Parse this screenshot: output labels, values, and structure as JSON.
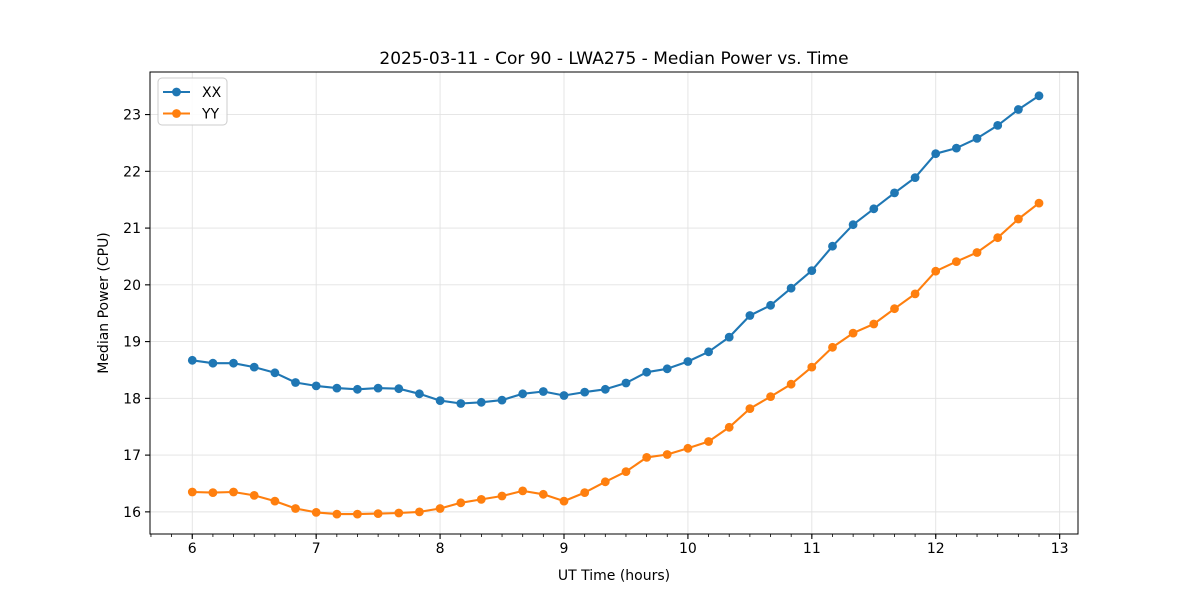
{
  "chart_data": {
    "type": "line",
    "title": "2025-03-11 - Cor 90 - LWA275 - Median Power vs. Time",
    "xlabel": "UT Time (hours)",
    "ylabel": "Median Power (CPU)",
    "xlim": [
      5.659,
      13.148
    ],
    "ylim": [
      15.61,
      23.75
    ],
    "xticks": [
      6,
      7,
      8,
      9,
      10,
      11,
      12,
      13
    ],
    "yticks": [
      16,
      17,
      18,
      19,
      20,
      21,
      22,
      23
    ],
    "x_minor_step": 0.166667,
    "grid": true,
    "grid_color": "#e2e2e2",
    "legend_position": "upper-left",
    "x": [
      6.0,
      6.167,
      6.333,
      6.5,
      6.667,
      6.833,
      7.0,
      7.167,
      7.333,
      7.5,
      7.667,
      7.833,
      8.0,
      8.167,
      8.333,
      8.5,
      8.667,
      8.833,
      9.0,
      9.167,
      9.333,
      9.5,
      9.667,
      9.833,
      10.0,
      10.167,
      10.333,
      10.5,
      10.667,
      10.833,
      11.0,
      11.167,
      11.333,
      11.5,
      11.667,
      11.833,
      12.0,
      12.167,
      12.333,
      12.5,
      12.667,
      12.833
    ],
    "series": [
      {
        "name": "XX",
        "color": "#1f77b4",
        "values": [
          18.67,
          18.62,
          18.62,
          18.55,
          18.45,
          18.28,
          18.22,
          18.18,
          18.16,
          18.18,
          18.17,
          18.08,
          17.96,
          17.91,
          17.93,
          17.97,
          18.08,
          18.12,
          18.05,
          18.11,
          18.16,
          18.27,
          18.46,
          18.52,
          18.65,
          18.82,
          19.08,
          19.46,
          19.64,
          19.94,
          20.25,
          20.68,
          21.06,
          21.34,
          21.62,
          21.89,
          22.31,
          22.41,
          22.58,
          22.81,
          23.09,
          23.33
        ]
      },
      {
        "name": "YY",
        "color": "#ff7f0e",
        "values": [
          16.35,
          16.34,
          16.35,
          16.29,
          16.19,
          16.06,
          15.99,
          15.96,
          15.96,
          15.97,
          15.98,
          16.0,
          16.06,
          16.16,
          16.22,
          16.28,
          16.37,
          16.31,
          16.19,
          16.34,
          16.53,
          16.71,
          16.96,
          17.01,
          17.12,
          17.24,
          17.49,
          17.82,
          18.03,
          18.25,
          18.55,
          18.9,
          19.15,
          19.31,
          19.58,
          19.84,
          20.24,
          20.41,
          20.57,
          20.83,
          21.16,
          21.44
        ]
      }
    ]
  }
}
